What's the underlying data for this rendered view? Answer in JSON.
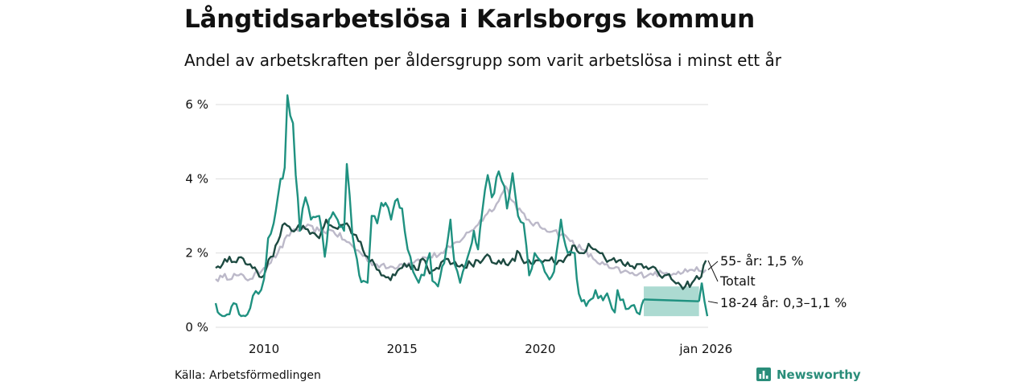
{
  "title": "Långtidsarbetslösa i Karlsborgs kommun",
  "subtitle": "Andel av arbetskraften per åldersgrupp som varit arbetslösa i minst ett år",
  "source": "Källa: Arbetsförmedlingen",
  "brand": "Newsworthy",
  "colors": {
    "young": "#1f9180",
    "total": "#1d4a41",
    "older": "#bcb9c9",
    "band": "#9dd3c9",
    "grid": "#dedede",
    "brand": "#2a8d7a"
  },
  "chart_data": {
    "type": "line",
    "title": "Långtidsarbetslösa i Karlsborgs kommun",
    "xlabel": "",
    "ylabel": "",
    "xlim": [
      2008.25,
      2026.08
    ],
    "ylim": [
      0,
      6
    ],
    "y_ticks": [
      0,
      2,
      4,
      6
    ],
    "y_tick_labels": [
      "0 %",
      "2 %",
      "4 %",
      "6 %"
    ],
    "x_ticks": [
      2010,
      2015,
      2020,
      2026
    ],
    "x_tick_labels": [
      "2010",
      "2015",
      "2020",
      "jan 2026"
    ],
    "grid": true,
    "series": [
      {
        "name": "55- år",
        "label": "55- år: 1,5 %",
        "color_key": "older",
        "points": [
          [
            2008.25,
            1.3
          ],
          [
            2008.5,
            1.35
          ],
          [
            2009.0,
            1.4
          ],
          [
            2009.5,
            1.3
          ],
          [
            2010.0,
            1.6
          ],
          [
            2010.5,
            2.0
          ],
          [
            2011.0,
            2.6
          ],
          [
            2011.5,
            2.7
          ],
          [
            2012.0,
            2.6
          ],
          [
            2012.5,
            2.6
          ],
          [
            2013.0,
            2.3
          ],
          [
            2013.5,
            2.0
          ],
          [
            2014.0,
            1.7
          ],
          [
            2014.5,
            1.6
          ],
          [
            2015.0,
            1.7
          ],
          [
            2015.5,
            1.8
          ],
          [
            2016.0,
            1.9
          ],
          [
            2016.5,
            2.0
          ],
          [
            2017.0,
            2.3
          ],
          [
            2017.5,
            2.6
          ],
          [
            2018.0,
            3.0
          ],
          [
            2018.5,
            3.4
          ],
          [
            2018.75,
            3.8
          ],
          [
            2019.0,
            3.4
          ],
          [
            2019.5,
            2.9
          ],
          [
            2020.0,
            2.7
          ],
          [
            2020.5,
            2.6
          ],
          [
            2021.0,
            2.4
          ],
          [
            2021.5,
            2.1
          ],
          [
            2022.0,
            1.8
          ],
          [
            2022.5,
            1.6
          ],
          [
            2023.0,
            1.5
          ],
          [
            2023.5,
            1.4
          ],
          [
            2024.0,
            1.45
          ],
          [
            2024.5,
            1.45
          ],
          [
            2025.0,
            1.5
          ],
          [
            2025.5,
            1.55
          ],
          [
            2026.0,
            1.55
          ]
        ]
      },
      {
        "name": "Totalt",
        "label": "Totalt",
        "color_key": "total",
        "points": [
          [
            2008.25,
            1.6
          ],
          [
            2008.5,
            1.7
          ],
          [
            2008.75,
            1.9
          ],
          [
            2009.0,
            1.75
          ],
          [
            2009.25,
            1.85
          ],
          [
            2009.5,
            1.7
          ],
          [
            2009.75,
            1.5
          ],
          [
            2010.0,
            1.4
          ],
          [
            2010.25,
            1.9
          ],
          [
            2010.5,
            2.3
          ],
          [
            2010.75,
            2.8
          ],
          [
            2011.0,
            2.6
          ],
          [
            2011.25,
            2.75
          ],
          [
            2011.5,
            2.65
          ],
          [
            2011.75,
            2.55
          ],
          [
            2012.0,
            2.4
          ],
          [
            2012.25,
            2.9
          ],
          [
            2012.5,
            2.7
          ],
          [
            2012.75,
            2.75
          ],
          [
            2013.0,
            2.8
          ],
          [
            2013.25,
            2.5
          ],
          [
            2013.5,
            2.3
          ],
          [
            2013.75,
            1.9
          ],
          [
            2014.0,
            1.7
          ],
          [
            2014.25,
            1.4
          ],
          [
            2014.5,
            1.35
          ],
          [
            2014.75,
            1.4
          ],
          [
            2015.0,
            1.6
          ],
          [
            2015.25,
            1.7
          ],
          [
            2015.5,
            1.55
          ],
          [
            2015.75,
            1.85
          ],
          [
            2016.0,
            1.45
          ],
          [
            2016.25,
            1.6
          ],
          [
            2016.5,
            1.8
          ],
          [
            2016.75,
            1.7
          ],
          [
            2017.0,
            1.65
          ],
          [
            2017.25,
            1.6
          ],
          [
            2017.5,
            1.7
          ],
          [
            2017.75,
            1.8
          ],
          [
            2018.0,
            1.9
          ],
          [
            2018.25,
            1.75
          ],
          [
            2018.5,
            1.8
          ],
          [
            2018.75,
            1.7
          ],
          [
            2019.0,
            1.85
          ],
          [
            2019.25,
            2.0
          ],
          [
            2019.5,
            1.75
          ],
          [
            2019.75,
            1.7
          ],
          [
            2020.0,
            1.8
          ],
          [
            2020.25,
            1.8
          ],
          [
            2020.5,
            1.75
          ],
          [
            2020.75,
            1.8
          ],
          [
            2021.0,
            1.95
          ],
          [
            2021.25,
            2.2
          ],
          [
            2021.5,
            2.0
          ],
          [
            2021.75,
            2.25
          ],
          [
            2022.0,
            2.1
          ],
          [
            2022.25,
            2.0
          ],
          [
            2022.5,
            1.8
          ],
          [
            2022.75,
            1.75
          ],
          [
            2023.0,
            1.7
          ],
          [
            2023.25,
            1.65
          ],
          [
            2023.5,
            1.7
          ],
          [
            2023.75,
            1.6
          ],
          [
            2024.0,
            1.6
          ],
          [
            2024.25,
            1.5
          ],
          [
            2024.5,
            1.4
          ],
          [
            2024.75,
            1.3
          ],
          [
            2025.0,
            1.2
          ],
          [
            2025.25,
            1.1
          ],
          [
            2025.5,
            1.2
          ],
          [
            2025.75,
            1.3
          ],
          [
            2026.0,
            1.8
          ]
        ]
      },
      {
        "name": "18-24 år",
        "label": "18-24 år: 0,3–1,1 %",
        "color_key": "young",
        "points": [
          [
            2008.25,
            0.65
          ],
          [
            2008.4,
            0.35
          ],
          [
            2008.75,
            0.35
          ],
          [
            2008.9,
            0.65
          ],
          [
            2009.1,
            0.35
          ],
          [
            2009.4,
            0.35
          ],
          [
            2009.6,
            0.85
          ],
          [
            2009.8,
            0.9
          ],
          [
            2010.0,
            1.3
          ],
          [
            2010.15,
            2.4
          ],
          [
            2010.35,
            2.8
          ],
          [
            2010.5,
            3.5
          ],
          [
            2010.6,
            4.0
          ],
          [
            2010.75,
            4.3
          ],
          [
            2010.85,
            6.25
          ],
          [
            2010.95,
            5.7
          ],
          [
            2011.05,
            5.5
          ],
          [
            2011.15,
            4.1
          ],
          [
            2011.3,
            2.6
          ],
          [
            2011.5,
            3.5
          ],
          [
            2011.7,
            2.9
          ],
          [
            2012.0,
            3.0
          ],
          [
            2012.2,
            1.9
          ],
          [
            2012.35,
            2.9
          ],
          [
            2012.5,
            3.1
          ],
          [
            2012.75,
            2.7
          ],
          [
            2012.9,
            2.6
          ],
          [
            2013.0,
            4.4
          ],
          [
            2013.2,
            2.5
          ],
          [
            2013.45,
            1.4
          ],
          [
            2013.75,
            1.2
          ],
          [
            2013.9,
            3.0
          ],
          [
            2014.1,
            2.8
          ],
          [
            2014.25,
            3.35
          ],
          [
            2014.4,
            3.35
          ],
          [
            2014.6,
            2.9
          ],
          [
            2014.75,
            3.4
          ],
          [
            2015.0,
            3.2
          ],
          [
            2015.2,
            2.1
          ],
          [
            2015.4,
            1.5
          ],
          [
            2015.6,
            1.2
          ],
          [
            2015.8,
            1.4
          ],
          [
            2016.0,
            2.0
          ],
          [
            2016.1,
            1.25
          ],
          [
            2016.3,
            1.1
          ],
          [
            2016.6,
            2.1
          ],
          [
            2016.75,
            2.9
          ],
          [
            2016.9,
            1.7
          ],
          [
            2017.1,
            1.2
          ],
          [
            2017.3,
            1.7
          ],
          [
            2017.6,
            2.6
          ],
          [
            2017.75,
            2.1
          ],
          [
            2017.9,
            3.1
          ],
          [
            2018.1,
            4.1
          ],
          [
            2018.25,
            3.5
          ],
          [
            2018.5,
            4.2
          ],
          [
            2018.7,
            3.8
          ],
          [
            2018.8,
            3.2
          ],
          [
            2019.0,
            4.15
          ],
          [
            2019.2,
            3.0
          ],
          [
            2019.4,
            2.8
          ],
          [
            2019.6,
            1.4
          ],
          [
            2019.8,
            2.0
          ],
          [
            2020.0,
            1.8
          ],
          [
            2020.25,
            1.4
          ],
          [
            2020.5,
            1.5
          ],
          [
            2020.75,
            2.9
          ],
          [
            2021.0,
            2.0
          ],
          [
            2021.25,
            2.0
          ],
          [
            2021.4,
            0.9
          ],
          [
            2021.5,
            0.7
          ],
          [
            2021.75,
            0.7
          ],
          [
            2022.0,
            1.0
          ],
          [
            2022.2,
            0.85
          ],
          [
            2022.5,
            0.75
          ],
          [
            2022.7,
            0.4
          ],
          [
            2022.8,
            1.0
          ],
          [
            2023.0,
            0.75
          ],
          [
            2023.2,
            0.5
          ],
          [
            2023.4,
            0.6
          ],
          [
            2023.5,
            0.4
          ],
          [
            2023.6,
            0.35
          ],
          [
            2023.75,
            0.75
          ]
        ]
      }
    ],
    "band": {
      "name": "18-24 år prognos",
      "x": [
        2023.75,
        2025.75
      ],
      "lower": 0.3,
      "upper": 1.1,
      "center": 0.7
    },
    "end_points": [
      [
        2025.75,
        0.7
      ],
      [
        2025.85,
        1.2
      ],
      [
        2025.95,
        0.7
      ],
      [
        2026.05,
        0.3
      ]
    ]
  }
}
